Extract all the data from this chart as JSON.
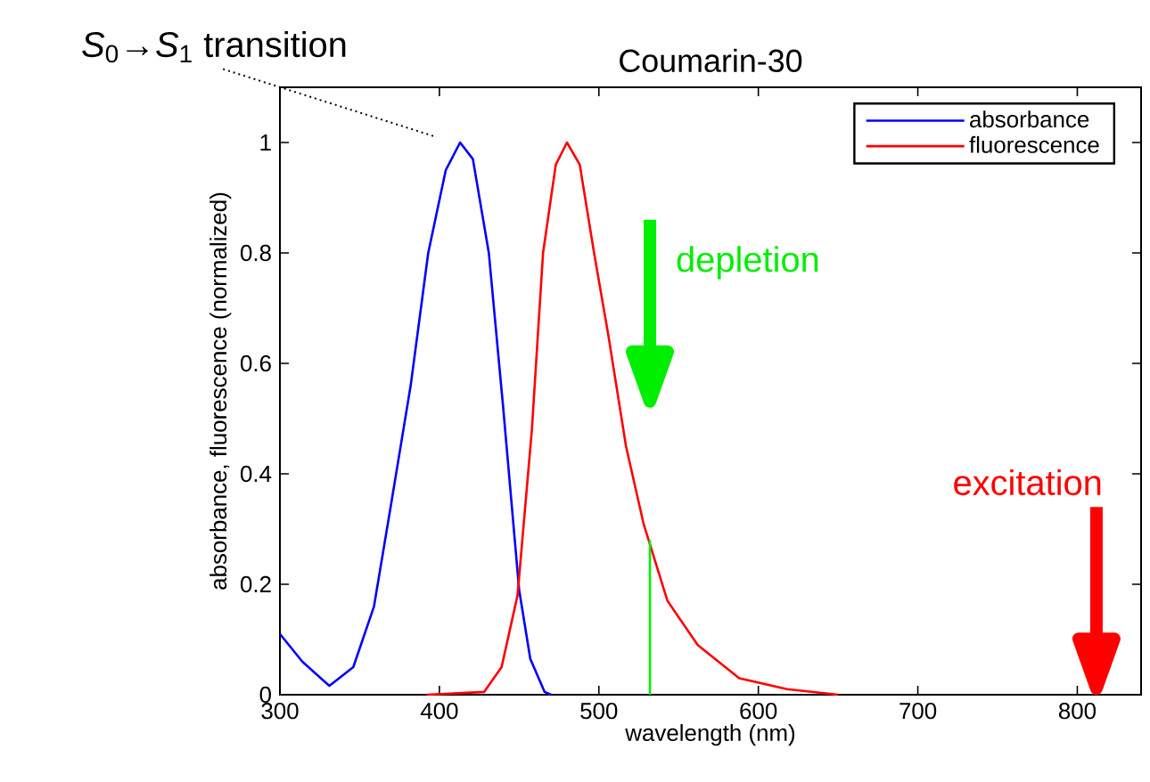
{
  "chart_data": {
    "type": "line",
    "title": "Coumarin-30",
    "xlabel": "wavelength (nm)",
    "ylabel": "absorbance, fluorescence (normalized)",
    "xlim": [
      300,
      840
    ],
    "ylim": [
      0,
      1.1
    ],
    "xticks": [
      300,
      400,
      500,
      600,
      700,
      800
    ],
    "yticks": [
      0,
      0.2,
      0.4,
      0.6,
      0.8,
      1
    ],
    "legend": "top right",
    "marker": "none",
    "line_style": "solid",
    "series": [
      {
        "name": "absorbance",
        "color": "#0000ff",
        "x": [
          300,
          314,
          331,
          346,
          359,
          370,
          382,
          393,
          404,
          413,
          421,
          431,
          440,
          450,
          457,
          466,
          470
        ],
        "values": [
          0.11,
          0.06,
          0.016,
          0.05,
          0.16,
          0.35,
          0.56,
          0.8,
          0.95,
          1.0,
          0.97,
          0.8,
          0.52,
          0.19,
          0.065,
          0.005,
          0
        ]
      },
      {
        "name": "fluorescence",
        "color": "#ff0000",
        "x": [
          392,
          428,
          439,
          449,
          458,
          465,
          473,
          480,
          488,
          497,
          506,
          517,
          528,
          543,
          562,
          588,
          618,
          650
        ],
        "values": [
          0,
          0.005,
          0.05,
          0.18,
          0.48,
          0.8,
          0.96,
          1.0,
          0.96,
          0.8,
          0.65,
          0.45,
          0.31,
          0.17,
          0.09,
          0.03,
          0.01,
          0
        ]
      },
      {
        "color": "#00ee00",
        "x": [
          532,
          532
        ],
        "values": [
          0,
          0.28
        ]
      }
    ],
    "ref_lines": [
      {
        "axis": "x",
        "value": 532,
        "label": "depletion",
        "color": "#00ee00"
      },
      {
        "axis": "x",
        "value": 812,
        "label": "excitation",
        "color": "#ff0000"
      }
    ],
    "annotations": [
      "*S*$_{0}$→*S*$_{1}$ transition"
    ]
  }
}
